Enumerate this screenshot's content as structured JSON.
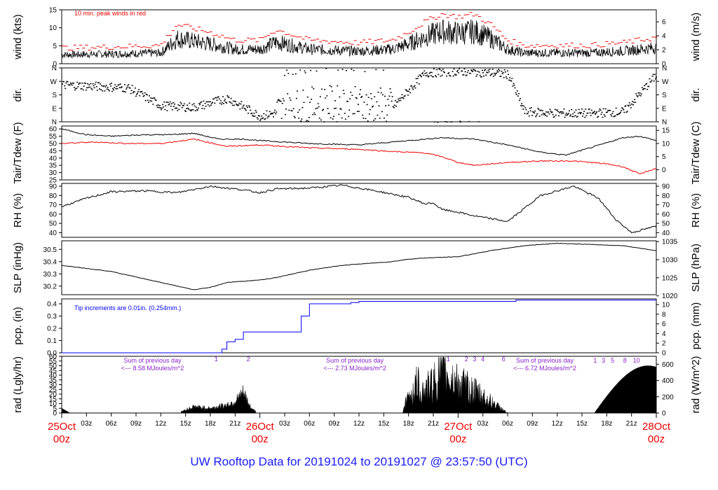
{
  "title": "UW Rooftop Data for 20191024  to  20191027 @ 23:57:50  (UTC)",
  "time_axis": {
    "tick_labels": [
      "03z",
      "06z",
      "09z",
      "12z",
      "15z",
      "18z",
      "21z",
      "03z",
      "06z",
      "09z",
      "12z",
      "15z",
      "18z",
      "21z",
      "03z",
      "06z",
      "09z",
      "12z",
      "15z",
      "18z",
      "21z"
    ],
    "day_labels": [
      {
        "day": "25Oct",
        "hour": "00z"
      },
      {
        "day": "26Oct",
        "hour": "00z"
      },
      {
        "day": "27Oct",
        "hour": "00z"
      },
      {
        "day": "28Oct",
        "hour": "00z"
      }
    ]
  },
  "panels": {
    "wind": {
      "left_label": "wind (kts)",
      "right_label": "wind (m/s)",
      "note": "10 min. peak winds in red",
      "left_ticks": [
        "0",
        "5",
        "10",
        "15"
      ],
      "right_ticks": [
        "0",
        "2",
        "4",
        "6"
      ],
      "ylim": [
        0,
        15
      ]
    },
    "dir": {
      "left_label": "dir.",
      "right_label": "dir.",
      "ticks": [
        "N",
        "E",
        "S",
        "W",
        "N"
      ]
    },
    "temp": {
      "left_label": "Tair/Tdew (F)",
      "right_label": "Tair/Tdew (C)",
      "left_ticks": [
        "25",
        "30",
        "35",
        "40",
        "45",
        "50",
        "55",
        "60"
      ],
      "right_ticks": [
        "0",
        "5",
        "10",
        "15"
      ],
      "ylim": [
        25,
        62
      ]
    },
    "rh": {
      "left_label": "RH (%)",
      "right_label": "RH (%)",
      "ticks": [
        "40",
        "50",
        "60",
        "70",
        "80",
        "90"
      ],
      "ylim": [
        35,
        93
      ]
    },
    "slp": {
      "left_label": "SLP (inHg)",
      "right_label": "SLP (hPa)",
      "left_ticks": [
        "30.2",
        "30.3",
        "30.4",
        "30.5"
      ],
      "right_ticks": [
        "1020",
        "1025",
        "1030",
        "1035"
      ],
      "ylim": [
        30.13,
        30.57
      ]
    },
    "pcp": {
      "left_label": "pcp. (in)",
      "right_label": "pcp. (mm)",
      "note": "Tip increments are 0.01in. (0.254mm.)",
      "left_ticks": [
        "0.0",
        "0.1",
        "0.2",
        "0.3",
        "0.4"
      ],
      "right_ticks": [
        "0",
        "2",
        "4",
        "6",
        "8",
        "10"
      ],
      "ylim": [
        0,
        0.44
      ],
      "tip_labels": [
        "1",
        "2",
        "1",
        "2",
        "3",
        "4",
        "6"
      ]
    },
    "rad": {
      "left_label": "rad (Lgly/hr)",
      "right_label": "rad (W/m^2)",
      "left_ticks": [
        "0",
        "5",
        "10",
        "15",
        "20",
        "25",
        "30",
        "35",
        "40",
        "45",
        "50",
        "55",
        "60"
      ],
      "right_ticks": [
        "0",
        "200",
        "400",
        "600"
      ],
      "ylim": [
        0,
        60
      ],
      "sums": [
        {
          "line1": "Sum of previous day",
          "line2": "<--- 8.58 MJoules/m^2"
        },
        {
          "line1": "Sum of previous day",
          "line2": "<--- 2.73 MJoules/m^2"
        },
        {
          "line1": "Sum of previous day",
          "line2": "<--- 6.72 MJoules/m^2"
        }
      ],
      "tip_labels_day3": [
        "1",
        "3",
        "5",
        "8",
        "10"
      ]
    }
  },
  "chart_data": {
    "type": "line",
    "x_unit": "hours since 25Oct 00z",
    "xlim": [
      0,
      72
    ],
    "series": [
      {
        "name": "wind",
        "x": [
          0,
          6,
          12,
          14,
          18,
          21,
          24,
          26,
          30,
          36,
          40,
          42,
          44,
          46,
          48,
          50,
          52,
          54,
          56,
          60,
          64,
          68,
          72
        ],
        "y": [
          2.5,
          2.7,
          3,
          7,
          5.5,
          4,
          4,
          6,
          4,
          3.5,
          4,
          5.5,
          7.5,
          9,
          8.5,
          9,
          7,
          4,
          3,
          3,
          3,
          3.5,
          4.5
        ]
      },
      {
        "name": "Tair",
        "x": [
          0,
          3,
          6,
          10,
          13,
          16,
          19,
          22,
          24,
          27,
          30,
          36,
          40,
          46,
          50,
          54,
          58,
          61,
          64,
          68,
          70,
          72
        ],
        "y": [
          60,
          56,
          55,
          56,
          56,
          57,
          53,
          53,
          52,
          51,
          50,
          49,
          51,
          54,
          53,
          49,
          44,
          42,
          47,
          54,
          55,
          52
        ]
      },
      {
        "name": "Tdew",
        "x": [
          0,
          4,
          8,
          12,
          16,
          20,
          24,
          30,
          36,
          40,
          42,
          44,
          46,
          48,
          50,
          54,
          58,
          62,
          64,
          66,
          68,
          70,
          72
        ],
        "y": [
          50,
          51,
          50,
          50,
          53,
          48,
          49,
          47,
          46,
          44.5,
          44,
          43.5,
          41,
          37,
          35,
          37,
          38,
          38,
          37,
          36,
          34,
          29,
          33
        ]
      },
      {
        "name": "RH",
        "x": [
          0,
          3,
          6,
          10,
          14,
          18,
          22,
          24,
          26,
          30,
          34,
          38,
          42,
          44,
          45,
          46,
          48,
          50,
          54,
          58,
          62,
          65,
          67,
          69,
          72
        ],
        "y": [
          68,
          77,
          84,
          85,
          83,
          90,
          86,
          83,
          87,
          88,
          91,
          85,
          78,
          71,
          72,
          65,
          62,
          58,
          52,
          80,
          90,
          77,
          55,
          40,
          47
        ]
      },
      {
        "name": "SLP",
        "x": [
          0,
          6,
          10,
          14,
          16,
          18,
          20,
          24,
          26,
          30,
          34,
          36,
          40,
          42,
          44,
          48,
          52,
          56,
          60,
          64,
          68,
          72
        ],
        "y": [
          30.37,
          30.32,
          30.26,
          30.2,
          30.17,
          30.19,
          30.23,
          30.25,
          30.27,
          30.33,
          30.37,
          30.38,
          30.4,
          30.42,
          30.43,
          30.44,
          30.49,
          30.53,
          30.55,
          30.54,
          30.53,
          30.49
        ]
      },
      {
        "name": "pcp",
        "x": [
          0,
          19,
          19.4,
          20,
          21,
          22,
          24,
          25,
          28,
          29,
          30,
          35,
          36,
          40,
          55,
          72
        ],
        "y": [
          0,
          0,
          0.03,
          0.09,
          0.11,
          0.17,
          0.17,
          0.17,
          0.17,
          0.3,
          0.4,
          0.41,
          0.42,
          0.42,
          0.43,
          0.43
        ]
      },
      {
        "name": "rad",
        "x": [
          0,
          0.5,
          1,
          14,
          15,
          16,
          18,
          20,
          21,
          22,
          23,
          24,
          41,
          42,
          43,
          44,
          46,
          47,
          48,
          50,
          52,
          54,
          56,
          66,
          68,
          70,
          72
        ],
        "y": [
          5,
          4,
          0,
          0,
          4,
          8,
          6,
          10,
          15,
          25,
          5,
          0,
          0,
          20,
          40,
          30,
          55,
          50,
          40,
          30,
          15,
          0,
          0,
          0,
          40,
          50,
          40
        ]
      }
    ]
  }
}
